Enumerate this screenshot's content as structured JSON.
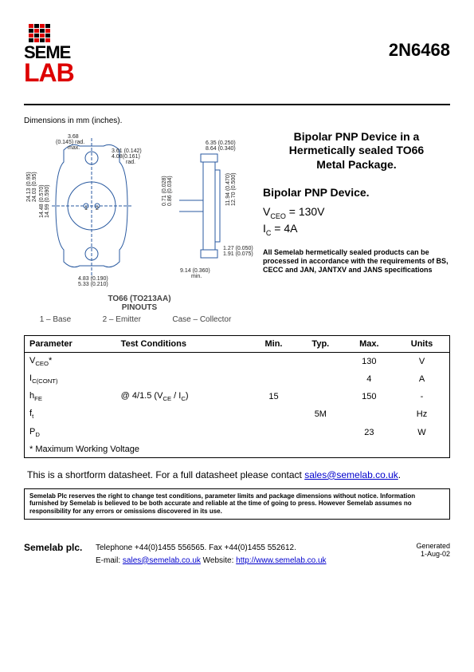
{
  "header": {
    "logo_top": "SEME",
    "logo_bottom": "LAB",
    "part_number": "2N6468"
  },
  "dimensions_label": "Dimensions in mm (inches).",
  "diagram": {
    "left_dims": {
      "rad_mm": "3.68",
      "rad_in": "(0.145) rad.",
      "rad_note": "max.",
      "d1_mm": "3.61 (0.142)",
      "d2_mm": "4.08(0.161)",
      "d2_note": "rad.",
      "h1_mm": "24.13 (0.95)",
      "h1_in": "24.03 (0.95)",
      "h2_mm": "14.48 (0.570)",
      "h2_in": "14.99 (0.590)",
      "w1_mm": "4.83 (0.190)",
      "w2_mm": "5.33 (0.210)"
    },
    "right_dims": {
      "t1": "6.35 (0.250)",
      "t2": "8.64 (0.340)",
      "p1": "0.71 (0.028)",
      "p2": "0.86 (0.034)",
      "b1": "11.94 (0.470)",
      "b2": "12.70 (0.500)",
      "l1": "1.27 (0.050)",
      "l2": "1.91 (0.075)",
      "m1": "9.14 (0.360)",
      "m_note": "min."
    },
    "pinout_title": "TO66 (TO213AA)",
    "pinout_sub": "PINOUTS",
    "pin1": "1 – Base",
    "pin2": "2 – Emitter",
    "pin3": "Case – Collector"
  },
  "description": {
    "title_l1": "Bipolar PNP Device in a",
    "title_l2": "Hermetically sealed TO66",
    "title_l3": "Metal Package.",
    "sub": "Bipolar PNP Device.",
    "vceo_label": "V",
    "vceo_sub": "CEO",
    "vceo_val": " =  130V",
    "ic_label": "I",
    "ic_sub": "C",
    "ic_val": " = 4A",
    "compliance": "All Semelab hermetically sealed products can be processed in accordance with the requirements of BS, CECC and JAN, JANTXV and JANS specifications"
  },
  "table": {
    "headers": {
      "param": "Parameter",
      "cond": "Test Conditions",
      "min": "Min.",
      "typ": "Typ.",
      "max": "Max.",
      "units": "Units"
    },
    "rows": [
      {
        "param": "V",
        "psub": "CEO",
        "star": "*",
        "cond": "",
        "min": "",
        "typ": "",
        "max": "130",
        "units": "V"
      },
      {
        "param": "I",
        "psub": "C(CONT)",
        "star": "",
        "cond": "",
        "min": "",
        "typ": "",
        "max": "4",
        "units": "A"
      },
      {
        "param": "h",
        "psub": "FE",
        "star": "",
        "cond": "@ 4/1.5 (V",
        "csub": "CE",
        "cond2": " / I",
        "csub2": "C",
        "cond3": ")",
        "min": "15",
        "typ": "",
        "max": "150",
        "units": "-"
      },
      {
        "param": "f",
        "psub": "t",
        "star": "",
        "cond": "",
        "min": "",
        "typ": "5M",
        "max": "",
        "units": "Hz"
      },
      {
        "param": "P",
        "psub": "D",
        "star": "",
        "cond": "",
        "min": "",
        "typ": "",
        "max": "23",
        "units": "W"
      }
    ],
    "note": "* Maximum Working Voltage"
  },
  "shortform": {
    "text": "This is a shortform datasheet. For a full datasheet please contact ",
    "link": "sales@semelab.co.uk",
    "suffix": "."
  },
  "disclaimer": "Semelab Plc reserves the right to change test conditions, parameter limits and package dimensions without notice. Information furnished by Semelab is believed to be both accurate and reliable at the time of going to press. However Semelab assumes no responsibility for any errors or omissions discovered in its use.",
  "footer": {
    "company": "Semelab plc.",
    "tel": "Telephone +44(0)1455 556565. Fax +44(0)1455 552612.",
    "email_label": "E-mail: ",
    "email": "sales@semelab.co.uk",
    "web_label": "    Website: ",
    "web": "http://www.semelab.co.uk",
    "gen1": "Generated",
    "gen2": "1-Aug-02"
  }
}
